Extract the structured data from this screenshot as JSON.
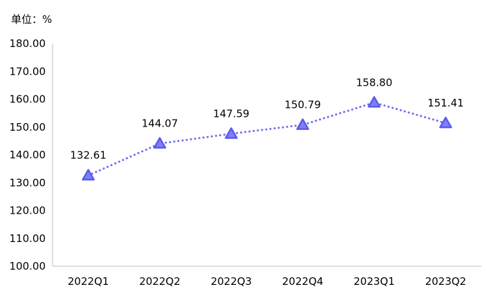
{
  "unit_label": "单位：%",
  "chart_data": {
    "type": "line",
    "categories": [
      "2022Q1",
      "2022Q2",
      "2022Q3",
      "2022Q4",
      "2023Q1",
      "2023Q2"
    ],
    "values": [
      132.61,
      144.07,
      147.59,
      150.79,
      158.8,
      151.41
    ],
    "value_labels": [
      "132.61",
      "144.07",
      "147.59",
      "150.79",
      "158.80",
      "151.41"
    ],
    "ylim": [
      100,
      180
    ],
    "yticks": [
      "100.00",
      "110.00",
      "120.00",
      "130.00",
      "140.00",
      "150.00",
      "160.00",
      "170.00",
      "180.00"
    ],
    "ytick_values": [
      100,
      110,
      120,
      130,
      140,
      150,
      160,
      170,
      180
    ],
    "grid": false,
    "line_style": "dotted",
    "marker": "triangle",
    "colors": {
      "line": "#6B6BF0",
      "marker_fill": "#8080F5",
      "marker_stroke": "#5A5AEE",
      "axis": "#BFBFBF"
    }
  }
}
